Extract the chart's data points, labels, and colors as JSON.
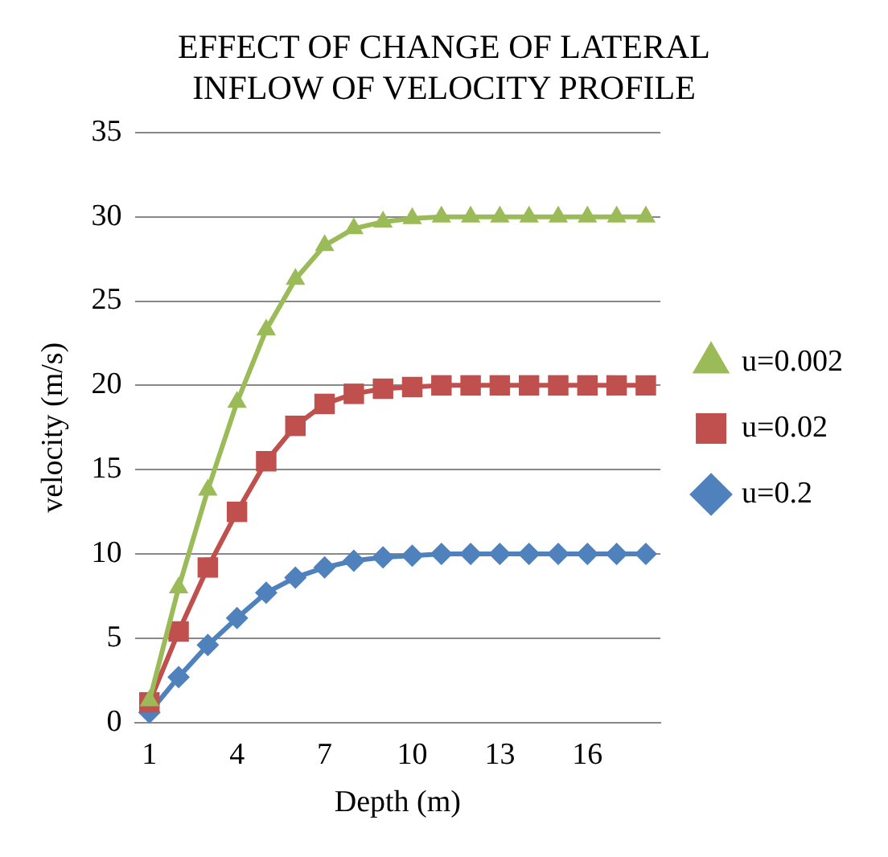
{
  "chart_data": {
    "type": "line",
    "title": "EFFECT OF CHANGE OF LATERAL INFLOW OF VELOCITY PROFILE",
    "xlabel": "Depth (m)",
    "ylabel": "velocity (m/s)",
    "categories": [
      "1",
      null,
      null,
      "4",
      null,
      null,
      "7",
      null,
      null,
      "10",
      null,
      null,
      "13",
      null,
      null,
      "16",
      null,
      null
    ],
    "series": [
      {
        "name": "u=0.002",
        "color": "#9bbb59",
        "marker": "triangle",
        "values": [
          1.3,
          8,
          13.8,
          19,
          23.3,
          26.3,
          28.3,
          29.3,
          29.7,
          29.9,
          30,
          30,
          30,
          30,
          30,
          30,
          30,
          30
        ]
      },
      {
        "name": "u=0.02",
        "color": "#c0504d",
        "marker": "square",
        "values": [
          1.2,
          5.4,
          9.2,
          12.5,
          15.5,
          17.6,
          18.9,
          19.5,
          19.8,
          19.9,
          20,
          20,
          20,
          20,
          20,
          20,
          20,
          20
        ]
      },
      {
        "name": "u=0.2",
        "color": "#4f81bd",
        "marker": "diamond",
        "values": [
          0.6,
          2.7,
          4.6,
          6.2,
          7.7,
          8.6,
          9.2,
          9.6,
          9.8,
          9.9,
          10,
          10,
          10,
          10,
          10,
          10,
          10,
          10
        ]
      }
    ],
    "ylim": [
      0,
      35
    ],
    "yticks": [
      0,
      5,
      10,
      15,
      20,
      25,
      30,
      35
    ],
    "grid": "y",
    "legend": "right",
    "line_style": "solid"
  }
}
